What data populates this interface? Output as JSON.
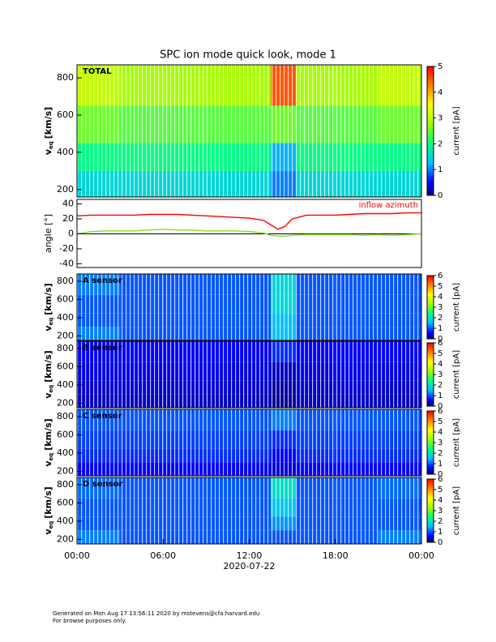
{
  "chart_data": [
    {
      "type": "heatmap",
      "title": "SPC ion mode quick look, mode 1",
      "label": "TOTAL",
      "ylabel": {
        "main": "v",
        "sub": "eq",
        "unit": "[km/s]"
      },
      "xlim": [
        0,
        24
      ],
      "ylim": [
        160,
        870
      ],
      "yticks": [
        200,
        400,
        600,
        800
      ],
      "x_edges": [
        0,
        3,
        6,
        9,
        12,
        13.5,
        15.25,
        18,
        21,
        24
      ],
      "y_edges": [
        160,
        300,
        450,
        650,
        870
      ],
      "values": [
        [
          1.5,
          1.5,
          1.5,
          1.5,
          1.5,
          1.0,
          1.5,
          1.5,
          1.5
        ],
        [
          2.0,
          2.0,
          2.0,
          2.0,
          2.0,
          1.2,
          2.0,
          2.0,
          2.0
        ],
        [
          2.5,
          2.4,
          2.4,
          2.4,
          2.4,
          2.5,
          2.4,
          2.4,
          2.5
        ],
        [
          3.0,
          2.8,
          2.8,
          2.8,
          2.8,
          4.5,
          2.8,
          2.8,
          3.0
        ]
      ],
      "colorbar": {
        "label": "current [pA]",
        "lim": [
          0,
          5
        ],
        "ticks": [
          0,
          1,
          2,
          3,
          4,
          5
        ]
      }
    },
    {
      "type": "line",
      "ylabel": "angle [°]",
      "xlim": [
        0,
        24
      ],
      "ylim": [
        -45,
        46
      ],
      "yticks": [
        -40,
        -20,
        0,
        20,
        40
      ],
      "hline": 0,
      "x": [
        0,
        1,
        2,
        3,
        4,
        5,
        6,
        7,
        8,
        9,
        10,
        11,
        12,
        13,
        13.5,
        14,
        14.5,
        15,
        16,
        17,
        18,
        19,
        20,
        21,
        22,
        23,
        24
      ],
      "series": [
        {
          "name": "inflow azimuth",
          "color": "#ff0000",
          "values": [
            24,
            25,
            25,
            25,
            25,
            26,
            26,
            26,
            25,
            24,
            23,
            22,
            21,
            18,
            12,
            6,
            10,
            20,
            25,
            25,
            25,
            26,
            27,
            27,
            27,
            28,
            28
          ]
        },
        {
          "color": "#80e020",
          "values": [
            0,
            3,
            4,
            4,
            4,
            5,
            6,
            5,
            5,
            4,
            4,
            4,
            3,
            1,
            -2,
            -3,
            -3,
            -2,
            -1,
            -1,
            -1,
            -1,
            -2,
            -1,
            -2,
            -1,
            0
          ]
        }
      ]
    },
    {
      "type": "heatmap",
      "label": "A sensor",
      "ylabel": {
        "main": "v",
        "sub": "eq",
        "unit": "[km/s]"
      },
      "xlim": [
        0,
        24
      ],
      "ylim": [
        150,
        880
      ],
      "yticks": [
        200,
        400,
        600,
        800
      ],
      "x_edges": [
        0,
        3,
        6,
        9,
        12,
        13.5,
        15.25,
        18,
        21,
        24
      ],
      "y_edges": [
        150,
        300,
        450,
        650,
        880
      ],
      "values": [
        [
          1.2,
          1.0,
          1.0,
          1.0,
          1.0,
          1.5,
          1.0,
          1.0,
          1.0
        ],
        [
          1.0,
          1.0,
          1.0,
          1.0,
          1.0,
          1.5,
          1.0,
          1.0,
          1.0
        ],
        [
          1.0,
          1.0,
          1.0,
          1.0,
          1.0,
          1.8,
          1.0,
          1.0,
          1.0
        ],
        [
          1.2,
          1.0,
          1.0,
          1.0,
          1.0,
          1.8,
          1.0,
          1.0,
          1.0
        ]
      ],
      "colorbar": {
        "label": "current [pA]",
        "lim": [
          0,
          6
        ],
        "ticks": [
          0,
          1,
          2,
          3,
          4,
          5,
          6
        ]
      }
    },
    {
      "type": "heatmap",
      "label": "B sensor",
      "ylabel": {
        "main": "v",
        "sub": "eq",
        "unit": "[km/s]"
      },
      "xlim": [
        0,
        24
      ],
      "ylim": [
        150,
        880
      ],
      "yticks": [
        200,
        400,
        600,
        800
      ],
      "x_edges": [
        0,
        3,
        6,
        9,
        12,
        13.5,
        15.25,
        18,
        21,
        24
      ],
      "y_edges": [
        150,
        300,
        450,
        650,
        880
      ],
      "values": [
        [
          0.3,
          0.3,
          0.3,
          0.3,
          0.3,
          0.1,
          0.3,
          0.3,
          0.3
        ],
        [
          0.4,
          0.4,
          0.4,
          0.4,
          0.4,
          0.2,
          0.4,
          0.4,
          0.4
        ],
        [
          0.5,
          0.5,
          0.5,
          0.5,
          0.5,
          0.3,
          0.5,
          0.5,
          0.5
        ],
        [
          0.6,
          0.6,
          0.6,
          0.6,
          0.6,
          0.8,
          0.6,
          0.6,
          0.6
        ]
      ],
      "colorbar": {
        "label": "current [pA]",
        "lim": [
          0,
          6
        ],
        "ticks": [
          0,
          1,
          2,
          3,
          4,
          5,
          6
        ]
      }
    },
    {
      "type": "heatmap",
      "label": "C sensor",
      "ylabel": {
        "main": "v",
        "sub": "eq",
        "unit": "[km/s]"
      },
      "xlim": [
        0,
        24
      ],
      "ylim": [
        150,
        880
      ],
      "yticks": [
        200,
        400,
        600,
        800
      ],
      "x_edges": [
        0,
        3,
        6,
        9,
        12,
        13.5,
        15.25,
        18,
        21,
        24
      ],
      "y_edges": [
        150,
        300,
        450,
        650,
        880
      ],
      "values": [
        [
          0.6,
          0.6,
          0.6,
          0.6,
          0.6,
          0.4,
          0.6,
          0.6,
          0.6
        ],
        [
          0.8,
          0.8,
          0.8,
          0.8,
          0.8,
          0.6,
          0.8,
          0.8,
          0.8
        ],
        [
          0.9,
          0.9,
          0.9,
          0.9,
          0.9,
          0.8,
          0.9,
          0.9,
          0.9
        ],
        [
          1.0,
          1.0,
          1.0,
          1.0,
          1.0,
          1.2,
          1.0,
          1.0,
          1.0
        ]
      ],
      "colorbar": {
        "label": "current [pA]",
        "lim": [
          0,
          6
        ],
        "ticks": [
          0,
          1,
          2,
          3,
          4,
          5,
          6
        ]
      }
    },
    {
      "type": "heatmap",
      "label": "D sensor",
      "ylabel": {
        "main": "v",
        "sub": "eq",
        "unit": "[km/s]"
      },
      "xlim": [
        0,
        24
      ],
      "ylim": [
        150,
        880
      ],
      "yticks": [
        200,
        400,
        600,
        800
      ],
      "xticks": [
        {
          "value": 0,
          "label": "00:00"
        },
        {
          "value": 6,
          "label": "06:00"
        },
        {
          "value": 12,
          "label": "12:00"
        },
        {
          "value": 18,
          "label": "18:00"
        },
        {
          "value": 24,
          "label": "00:00"
        }
      ],
      "xlabel": "2020-07-22",
      "x_edges": [
        0,
        3,
        6,
        9,
        12,
        13.5,
        15.25,
        18,
        21,
        24
      ],
      "y_edges": [
        150,
        300,
        450,
        650,
        880
      ],
      "values": [
        [
          1.2,
          1.0,
          1.0,
          1.0,
          1.0,
          1.0,
          1.0,
          1.0,
          1.2
        ],
        [
          1.0,
          1.0,
          1.0,
          1.0,
          1.0,
          1.3,
          1.0,
          1.0,
          1.0
        ],
        [
          1.0,
          1.0,
          1.0,
          1.0,
          1.0,
          1.6,
          1.0,
          1.0,
          1.0
        ],
        [
          1.1,
          1.0,
          1.0,
          1.0,
          1.0,
          1.9,
          1.0,
          1.0,
          1.1
        ]
      ],
      "colorbar": {
        "label": "current [pA]",
        "lim": [
          0,
          6
        ],
        "ticks": [
          0,
          1,
          2,
          3,
          4,
          5,
          6
        ]
      }
    }
  ],
  "footer": [
    "Generated on Mon Aug 17 13:56:11 2020 by mstevens@cfa.harvard.edu",
    "For browse purposes only."
  ]
}
